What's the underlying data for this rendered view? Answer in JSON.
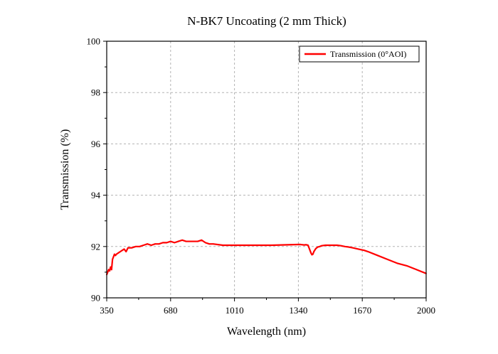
{
  "chart_data": {
    "type": "line",
    "title": "N-BK7 Uncoating (2 mm  Thick)",
    "xlabel": "Wavelength (nm)",
    "ylabel": "Transmission (%)",
    "xlim": [
      350,
      2000
    ],
    "ylim": [
      90,
      100
    ],
    "xticks": [
      350,
      680,
      1010,
      1340,
      1670,
      2000
    ],
    "yticks": [
      90,
      92,
      94,
      96,
      98,
      100
    ],
    "grid": true,
    "legend_position": "top-right",
    "colors": {
      "series": "#ff0000",
      "grid": "#b3b3b3"
    },
    "series": [
      {
        "name": "Transmission (0°AOI)",
        "x": [
          350,
          355,
          360,
          365,
          370,
          375,
          380,
          385,
          390,
          395,
          400,
          410,
          420,
          430,
          440,
          450,
          460,
          480,
          500,
          520,
          540,
          560,
          580,
          600,
          620,
          640,
          660,
          680,
          700,
          720,
          740,
          760,
          780,
          800,
          820,
          840,
          860,
          880,
          900,
          950,
          1000,
          1050,
          1100,
          1150,
          1200,
          1250,
          1300,
          1350,
          1370,
          1380,
          1390,
          1395,
          1400,
          1405,
          1410,
          1415,
          1420,
          1430,
          1440,
          1450,
          1460,
          1480,
          1500,
          1520,
          1540,
          1560,
          1580,
          1600,
          1620,
          1650,
          1680,
          1700,
          1750,
          1800,
          1850,
          1900,
          1950,
          2000
        ],
        "y": [
          90.9,
          91.0,
          91.1,
          91.05,
          91.2,
          91.1,
          91.5,
          91.6,
          91.7,
          91.65,
          91.7,
          91.75,
          91.8,
          91.85,
          91.9,
          91.8,
          91.95,
          91.95,
          92.0,
          92.0,
          92.05,
          92.1,
          92.05,
          92.1,
          92.1,
          92.15,
          92.15,
          92.2,
          92.15,
          92.2,
          92.25,
          92.2,
          92.2,
          92.2,
          92.2,
          92.25,
          92.15,
          92.1,
          92.1,
          92.05,
          92.05,
          92.05,
          92.05,
          92.05,
          92.05,
          92.06,
          92.07,
          92.08,
          92.06,
          92.07,
          92.05,
          91.95,
          91.85,
          91.75,
          91.68,
          91.7,
          91.8,
          91.92,
          91.98,
          92.0,
          92.03,
          92.05,
          92.05,
          92.05,
          92.05,
          92.03,
          92.0,
          91.98,
          91.95,
          91.9,
          91.85,
          91.8,
          91.65,
          91.5,
          91.35,
          91.25,
          91.1,
          90.95
        ]
      }
    ]
  }
}
